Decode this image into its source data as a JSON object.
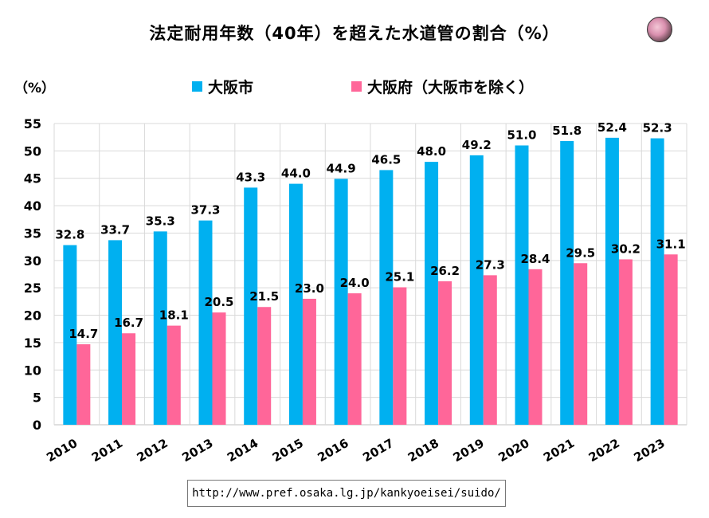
{
  "title": "法定耐用年数（40年）を超えた水道管の割合（%）",
  "unit_label": "（%）",
  "source_url": "http://www.pref.osaka.lg.jp/kankyoeisei/suido/",
  "chart_data": {
    "type": "bar",
    "title": "法定耐用年数（40年）を超えた水道管の割合（%）",
    "ylabel": "（%）",
    "xlabel": "",
    "ylim": [
      0,
      55
    ],
    "yticks": [
      0,
      5,
      10,
      15,
      20,
      25,
      30,
      35,
      40,
      45,
      50,
      55
    ],
    "grid": true,
    "legend": "top",
    "categories": [
      "2010",
      "2011",
      "2012",
      "2013",
      "2014",
      "2015",
      "2016",
      "2017",
      "2018",
      "2019",
      "2020",
      "2021",
      "2022",
      "2023"
    ],
    "series": [
      {
        "name": "大阪市",
        "color": "#00B0F0",
        "values": [
          32.8,
          33.7,
          35.3,
          37.3,
          43.3,
          44.0,
          44.9,
          46.5,
          48.0,
          49.2,
          51.0,
          51.8,
          52.4,
          52.3
        ],
        "labels": [
          "32.8",
          "33.7",
          "35.3",
          "37.3",
          "43.3",
          "44.0",
          "44.9",
          "46.5",
          "48.0",
          "49.2",
          "51.0",
          "51.8",
          "52.4",
          "52.3"
        ]
      },
      {
        "name": "大阪府（大阪市を除く）",
        "color": "#FF6699",
        "values": [
          14.7,
          16.7,
          18.1,
          20.5,
          21.5,
          23.0,
          24.0,
          25.1,
          26.2,
          27.3,
          28.4,
          29.5,
          30.2,
          31.1
        ],
        "labels": [
          "14.7",
          "16.7",
          "18.1",
          "20.5",
          "21.5",
          "23.0",
          "24.0",
          "25.1",
          "26.2",
          "27.3",
          "28.4",
          "29.5",
          "30.2",
          "31.1"
        ]
      }
    ]
  }
}
